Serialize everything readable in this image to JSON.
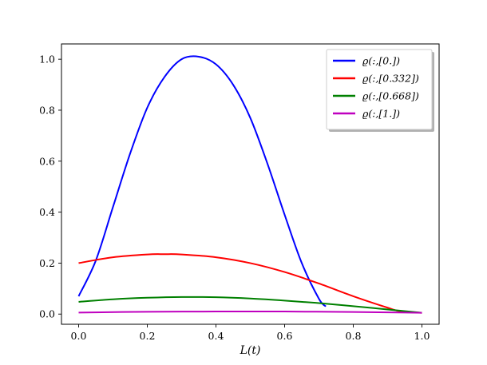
{
  "chart_data": {
    "type": "line",
    "title": "",
    "xlabel": "L(t)",
    "ylabel": "",
    "xlim": [
      -0.05,
      1.05
    ],
    "ylim": [
      -0.04,
      1.06
    ],
    "xticks": [
      0.0,
      0.2,
      0.4,
      0.6,
      0.8,
      1.0
    ],
    "xtick_labels": [
      "0.0",
      "0.2",
      "0.4",
      "0.6",
      "0.8",
      "1.0"
    ],
    "yticks": [
      0.0,
      0.2,
      0.4,
      0.6,
      0.8,
      1.0
    ],
    "ytick_labels": [
      "0.0",
      "0.2",
      "0.4",
      "0.6",
      "0.8",
      "1.0"
    ],
    "grid": false,
    "legend_position": "top-right",
    "series": [
      {
        "name": "ϱ(:,[0.])",
        "color": "#0000ff",
        "x": [
          0.0,
          0.05,
          0.1,
          0.15,
          0.2,
          0.25,
          0.3,
          0.35,
          0.4,
          0.45,
          0.5,
          0.55,
          0.6,
          0.65,
          0.7,
          0.72
        ],
        "y": [
          0.07,
          0.21,
          0.42,
          0.63,
          0.81,
          0.93,
          1.0,
          1.01,
          0.98,
          0.9,
          0.77,
          0.59,
          0.39,
          0.2,
          0.06,
          0.03
        ]
      },
      {
        "name": "ϱ(:,[0.332])",
        "color": "#ff0000",
        "x": [
          0.0,
          0.1,
          0.2,
          0.25,
          0.3,
          0.4,
          0.5,
          0.6,
          0.7,
          0.8,
          0.9,
          0.94,
          1.0
        ],
        "y": [
          0.2,
          0.223,
          0.234,
          0.235,
          0.234,
          0.223,
          0.2,
          0.165,
          0.12,
          0.07,
          0.025,
          0.01,
          0.005
        ]
      },
      {
        "name": "ϱ(:,[0.668])",
        "color": "#008000",
        "x": [
          0.0,
          0.1,
          0.2,
          0.3,
          0.4,
          0.5,
          0.6,
          0.7,
          0.8,
          0.9,
          1.0
        ],
        "y": [
          0.048,
          0.058,
          0.064,
          0.067,
          0.066,
          0.061,
          0.053,
          0.043,
          0.031,
          0.018,
          0.005
        ]
      },
      {
        "name": "ϱ(:,[1.])",
        "color": "#bf00bf",
        "x": [
          0.0,
          0.2,
          0.4,
          0.6,
          0.8,
          1.0
        ],
        "y": [
          0.006,
          0.009,
          0.01,
          0.01,
          0.008,
          0.005
        ]
      }
    ]
  }
}
